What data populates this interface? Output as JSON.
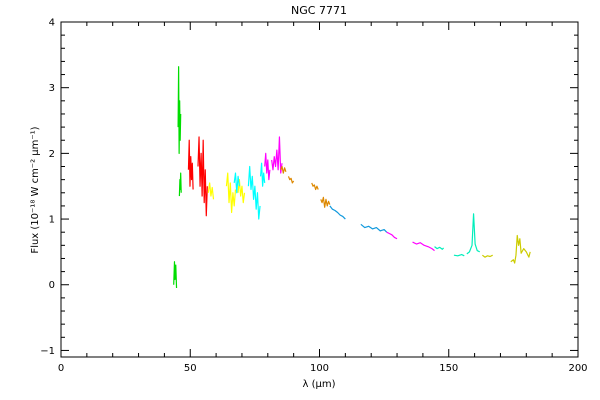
{
  "chart_data": {
    "type": "line",
    "title": "NGC 7771",
    "xlabel": "λ (μm)",
    "ylabel": "Flux (10⁻¹⁸ W cm⁻² μm⁻¹)",
    "xlim": [
      0,
      200
    ],
    "ylim": [
      -1.1,
      4.0
    ],
    "x_ticks": [
      0,
      50,
      100,
      150,
      200
    ],
    "y_ticks": [
      -1,
      0,
      1,
      2,
      3,
      4
    ],
    "grid": false,
    "series": [
      {
        "color": "#00dd00",
        "points": [
          [
            43.6,
            0.0
          ],
          [
            43.9,
            0.35
          ],
          [
            44.1,
            0.08
          ],
          [
            44.4,
            0.3
          ],
          [
            44.7,
            -0.05
          ]
        ]
      },
      {
        "color": "#00dd00",
        "points": [
          [
            45.8,
            1.35
          ],
          [
            46.0,
            1.6
          ],
          [
            46.1,
            1.45
          ],
          [
            46.3,
            1.7
          ],
          [
            46.5,
            1.4
          ]
        ]
      },
      {
        "color": "#00dd00",
        "points": [
          [
            45.3,
            2.4
          ],
          [
            45.5,
            3.32
          ],
          [
            45.7,
            2.0
          ],
          [
            45.9,
            2.8
          ],
          [
            46.1,
            2.2
          ],
          [
            46.3,
            2.6
          ]
        ]
      },
      {
        "color": "#ff0000",
        "points": [
          [
            49.3,
            1.75
          ],
          [
            49.6,
            2.2
          ],
          [
            49.9,
            1.5
          ],
          [
            50.2,
            1.95
          ],
          [
            50.5,
            1.6
          ],
          [
            50.8,
            1.85
          ],
          [
            51.1,
            1.45
          ]
        ]
      },
      {
        "color": "#ff0000",
        "points": [
          [
            53.0,
            1.8
          ],
          [
            53.4,
            2.25
          ],
          [
            53.8,
            1.5
          ],
          [
            54.2,
            2.0
          ],
          [
            54.6,
            1.35
          ],
          [
            55.0,
            2.2
          ],
          [
            55.4,
            1.25
          ],
          [
            55.8,
            1.75
          ],
          [
            56.2,
            1.05
          ],
          [
            56.6,
            1.5
          ]
        ]
      },
      {
        "color": "#ffff00",
        "points": [
          [
            57.0,
            1.4
          ],
          [
            57.5,
            1.55
          ],
          [
            58.0,
            1.35
          ],
          [
            58.5,
            1.48
          ],
          [
            59.0,
            1.3
          ]
        ]
      },
      {
        "color": "#ffff00",
        "points": [
          [
            64.0,
            1.5
          ],
          [
            64.5,
            1.7
          ],
          [
            65.0,
            1.25
          ],
          [
            65.5,
            1.55
          ],
          [
            66.0,
            1.1
          ],
          [
            66.5,
            1.4
          ],
          [
            67.0,
            1.2
          ],
          [
            67.5,
            1.45
          ]
        ]
      },
      {
        "color": "#ffff00",
        "points": [
          [
            68.5,
            1.4
          ],
          [
            69.0,
            1.6
          ],
          [
            69.5,
            1.35
          ],
          [
            70.0,
            1.5
          ],
          [
            70.5,
            1.25
          ],
          [
            71.0,
            1.4
          ]
        ]
      },
      {
        "color": "#00ffff",
        "points": [
          [
            67.0,
            1.55
          ],
          [
            67.5,
            1.7
          ],
          [
            68.0,
            1.4
          ],
          [
            68.5,
            1.65
          ],
          [
            69.0,
            1.5
          ]
        ]
      },
      {
        "color": "#00ffff",
        "points": [
          [
            72.5,
            1.5
          ],
          [
            73.0,
            1.8
          ],
          [
            73.5,
            1.45
          ],
          [
            74.0,
            1.65
          ],
          [
            74.5,
            1.3
          ],
          [
            75.0,
            1.5
          ],
          [
            75.5,
            1.15
          ],
          [
            76.0,
            1.4
          ],
          [
            76.5,
            1.0
          ],
          [
            77.0,
            1.2
          ]
        ]
      },
      {
        "color": "#00ffff",
        "points": [
          [
            77.2,
            1.65
          ],
          [
            77.6,
            1.85
          ],
          [
            78.0,
            1.5
          ],
          [
            78.4,
            1.7
          ],
          [
            78.8,
            1.55
          ]
        ]
      },
      {
        "color": "#ff00ff",
        "points": [
          [
            78.8,
            1.8
          ],
          [
            79.2,
            2.0
          ],
          [
            79.6,
            1.7
          ],
          [
            80.0,
            1.9
          ],
          [
            80.4,
            1.6
          ],
          [
            80.8,
            1.75
          ]
        ]
      },
      {
        "color": "#ff00ff",
        "points": [
          [
            81.5,
            1.9
          ],
          [
            82.0,
            1.75
          ],
          [
            82.5,
            1.95
          ],
          [
            83.0,
            1.8
          ],
          [
            83.5,
            2.05
          ],
          [
            84.0,
            1.75
          ],
          [
            84.5,
            2.25
          ],
          [
            85.0,
            1.7
          ],
          [
            85.5,
            1.85
          ]
        ]
      },
      {
        "color": "#dd8800",
        "points": [
          [
            85.0,
            1.75
          ],
          [
            85.5,
            1.8
          ],
          [
            86.0,
            1.7
          ],
          [
            86.5,
            1.78
          ],
          [
            87.0,
            1.72
          ]
        ]
      },
      {
        "color": "#dd8800",
        "points": [
          [
            88.0,
            1.65
          ],
          [
            88.5,
            1.6
          ],
          [
            89.0,
            1.62
          ],
          [
            89.5,
            1.55
          ],
          [
            90.0,
            1.58
          ]
        ]
      },
      {
        "color": "#dd8800",
        "points": [
          [
            97.0,
            1.55
          ],
          [
            97.5,
            1.5
          ],
          [
            98.0,
            1.52
          ],
          [
            98.5,
            1.45
          ],
          [
            99.0,
            1.5
          ],
          [
            99.5,
            1.45
          ]
        ]
      },
      {
        "color": "#dd8800",
        "points": [
          [
            100.5,
            1.3
          ],
          [
            101.0,
            1.25
          ],
          [
            101.5,
            1.33
          ],
          [
            102.0,
            1.18
          ],
          [
            102.5,
            1.3
          ],
          [
            103.0,
            1.2
          ],
          [
            103.5,
            1.27
          ],
          [
            104.0,
            1.22
          ]
        ]
      },
      {
        "color": "#1199dd",
        "points": [
          [
            104.0,
            1.2
          ],
          [
            105.0,
            1.15
          ],
          [
            106.0,
            1.13
          ],
          [
            107.0,
            1.1
          ],
          [
            108.0,
            1.06
          ],
          [
            109.0,
            1.04
          ],
          [
            110.0,
            1.0
          ]
        ]
      },
      {
        "color": "#1199dd",
        "points": [
          [
            116.0,
            0.92
          ],
          [
            117.5,
            0.87
          ],
          [
            119.0,
            0.89
          ],
          [
            120.5,
            0.85
          ],
          [
            122.0,
            0.87
          ],
          [
            123.5,
            0.82
          ],
          [
            125.0,
            0.84
          ],
          [
            126.0,
            0.8
          ]
        ]
      },
      {
        "color": "#ff00ff",
        "points": [
          [
            126.0,
            0.8
          ],
          [
            127.0,
            0.78
          ],
          [
            128.0,
            0.76
          ],
          [
            129.0,
            0.72
          ],
          [
            130.0,
            0.7
          ]
        ]
      },
      {
        "color": "#ff00ff",
        "points": [
          [
            136.0,
            0.65
          ],
          [
            137.5,
            0.62
          ],
          [
            139.0,
            0.64
          ],
          [
            140.5,
            0.6
          ],
          [
            142.0,
            0.58
          ],
          [
            143.5,
            0.55
          ],
          [
            144.5,
            0.52
          ]
        ]
      },
      {
        "color": "#00eebb",
        "points": [
          [
            144.5,
            0.58
          ],
          [
            145.5,
            0.55
          ],
          [
            146.5,
            0.57
          ],
          [
            147.5,
            0.54
          ],
          [
            148.0,
            0.56
          ]
        ]
      },
      {
        "color": "#00eebb",
        "points": [
          [
            157.0,
            0.47
          ],
          [
            158.0,
            0.5
          ],
          [
            159.0,
            0.6
          ],
          [
            159.6,
            1.08
          ],
          [
            160.2,
            0.62
          ],
          [
            161.0,
            0.52
          ],
          [
            162.0,
            0.5
          ]
        ]
      },
      {
        "color": "#00eebb",
        "points": [
          [
            152.0,
            0.45
          ],
          [
            153.5,
            0.44
          ],
          [
            155.0,
            0.46
          ],
          [
            156.0,
            0.44
          ]
        ]
      },
      {
        "color": "#cccc00",
        "points": [
          [
            163.0,
            0.45
          ],
          [
            164.0,
            0.42
          ],
          [
            165.0,
            0.44
          ],
          [
            166.0,
            0.43
          ],
          [
            167.0,
            0.45
          ]
        ]
      },
      {
        "color": "#cccc00",
        "points": [
          [
            174.0,
            0.35
          ],
          [
            175.0,
            0.38
          ],
          [
            175.5,
            0.33
          ],
          [
            176.0,
            0.45
          ],
          [
            176.5,
            0.75
          ],
          [
            177.0,
            0.6
          ],
          [
            177.5,
            0.7
          ],
          [
            178.0,
            0.48
          ],
          [
            179.0,
            0.55
          ],
          [
            180.0,
            0.5
          ],
          [
            181.0,
            0.42
          ],
          [
            181.5,
            0.5
          ]
        ]
      }
    ]
  }
}
